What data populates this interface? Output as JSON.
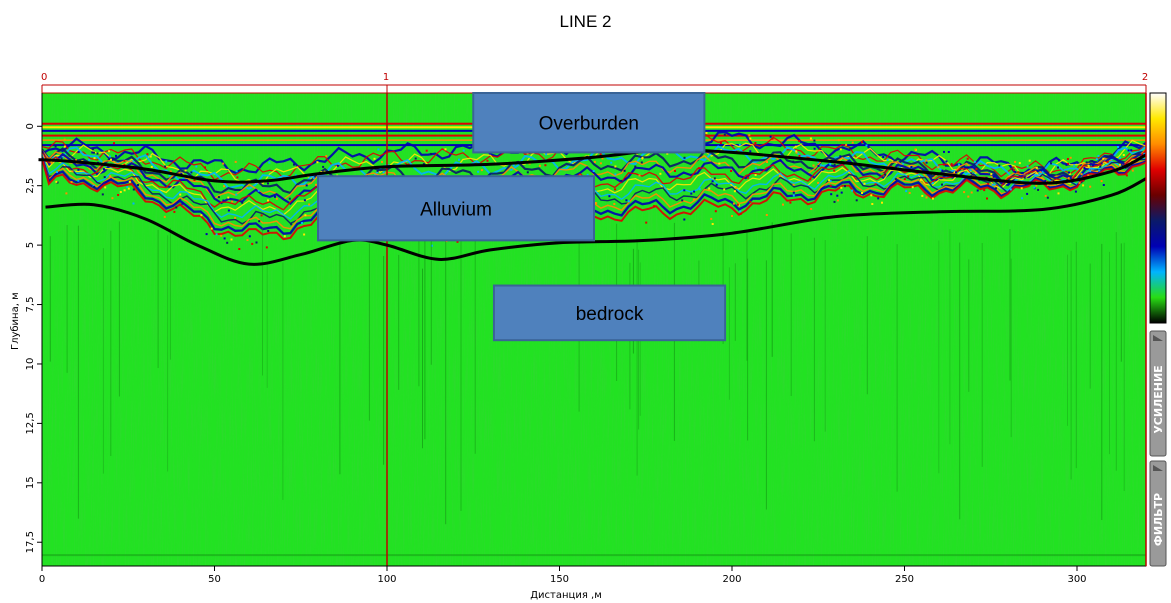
{
  "page": {
    "title": "LINE 2"
  },
  "chart_data": {
    "type": "heatmap",
    "title": "LINE 2",
    "xlabel": "Дистанция ,м",
    "ylabel": "Глубина, м",
    "x_range": [
      0,
      320
    ],
    "y_range": [
      0,
      18.5
    ],
    "x_ticks": [
      0,
      50,
      100,
      150,
      200,
      250,
      300
    ],
    "x_tick_labels": [
      "0",
      "50",
      "100",
      "150",
      "200",
      "250",
      "300"
    ],
    "y_ticks": [
      0,
      2.5,
      5,
      7.5,
      10,
      12.5,
      15,
      17.5
    ],
    "y_tick_labels": [
      "0",
      "2,5",
      "5",
      "7,5",
      "10",
      "12,5",
      "15",
      "17,5"
    ],
    "top_ticks": [
      {
        "x": 0,
        "label": "0"
      },
      {
        "x": 100,
        "label": "1"
      },
      {
        "x": 320,
        "label": "2"
      }
    ],
    "marker_line_x": 100,
    "layers": [
      {
        "name": "Overburden",
        "box": {
          "x": [
            125,
            192
          ],
          "y": [
            -1.4,
            1.1
          ]
        }
      },
      {
        "name": "Alluvium",
        "box": {
          "x": [
            80,
            160
          ],
          "y": [
            2.1,
            4.8
          ]
        }
      },
      {
        "name": "bedrock",
        "box": {
          "x": [
            131,
            198
          ],
          "y": [
            6.7,
            9.0
          ]
        }
      }
    ],
    "boundaries": [
      {
        "name": "top boundary",
        "points": [
          [
            -1,
            1.4
          ],
          [
            10,
            1.5
          ],
          [
            30,
            1.8
          ],
          [
            50,
            2.3
          ],
          [
            65,
            2.3
          ],
          [
            80,
            2.0
          ],
          [
            100,
            1.7
          ],
          [
            130,
            1.6
          ],
          [
            160,
            1.3
          ],
          [
            180,
            1.0
          ],
          [
            200,
            1.1
          ],
          [
            230,
            1.5
          ],
          [
            260,
            2.0
          ],
          [
            290,
            2.4
          ],
          [
            310,
            1.9
          ],
          [
            320,
            1.2
          ]
        ]
      },
      {
        "name": "bottom boundary",
        "points": [
          [
            1,
            3.4
          ],
          [
            15,
            3.3
          ],
          [
            30,
            3.9
          ],
          [
            45,
            5.0
          ],
          [
            60,
            5.8
          ],
          [
            75,
            5.4
          ],
          [
            90,
            4.8
          ],
          [
            100,
            5.0
          ],
          [
            115,
            5.6
          ],
          [
            130,
            5.2
          ],
          [
            150,
            4.9
          ],
          [
            175,
            4.8
          ],
          [
            200,
            4.5
          ],
          [
            230,
            3.8
          ],
          [
            260,
            3.6
          ],
          [
            290,
            3.5
          ],
          [
            310,
            2.9
          ],
          [
            320,
            2.2
          ]
        ]
      }
    ],
    "colorbar": [
      "#ffffff",
      "#ffe800",
      "#ff8c00",
      "#e00000",
      "#6a0000",
      "#0a1a6a",
      "#0000b4",
      "#00b4ff",
      "#28dc14",
      "#000000"
    ],
    "side_tabs": [
      "УСИЛЕНИЕ",
      "ФИЛЬТР"
    ],
    "colors": {
      "background": "#22e222",
      "marker_line": "#c00000",
      "box_fill": "#4f81bd",
      "box_stroke": "#3a6497"
    }
  }
}
